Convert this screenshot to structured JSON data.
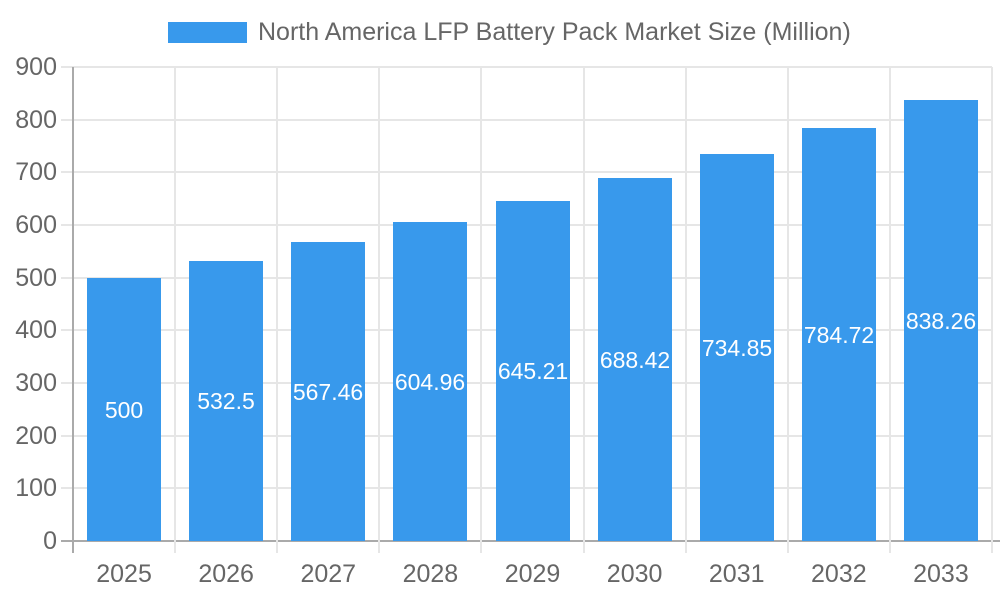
{
  "legend": {
    "label": "North America LFP Battery Pack Market Size (Million)"
  },
  "chart_data": {
    "type": "bar",
    "title": "North America LFP Battery Pack Market Size (Million)",
    "categories": [
      "2025",
      "2026",
      "2027",
      "2028",
      "2029",
      "2030",
      "2031",
      "2032",
      "2033"
    ],
    "values": [
      500,
      532.5,
      567.46,
      604.96,
      645.21,
      688.42,
      734.85,
      784.72,
      838.26
    ],
    "data_labels": [
      "500",
      "532.5",
      "567.46",
      "604.96",
      "645.21",
      "688.42",
      "734.85",
      "784.72",
      "838.26"
    ],
    "y_ticks": [
      0,
      100,
      200,
      300,
      400,
      500,
      600,
      700,
      800,
      900
    ],
    "ylim": [
      0,
      900
    ],
    "xlabel": "",
    "ylabel": "",
    "grid": true,
    "legend_position": "top",
    "colors": {
      "bar": "#3899EC",
      "bar_value_text": "#ffffff",
      "axis_text": "#666666",
      "legend_text": "#666666",
      "grid_line": "#e6e6e6",
      "axis_line": "#aaaaaa"
    }
  }
}
